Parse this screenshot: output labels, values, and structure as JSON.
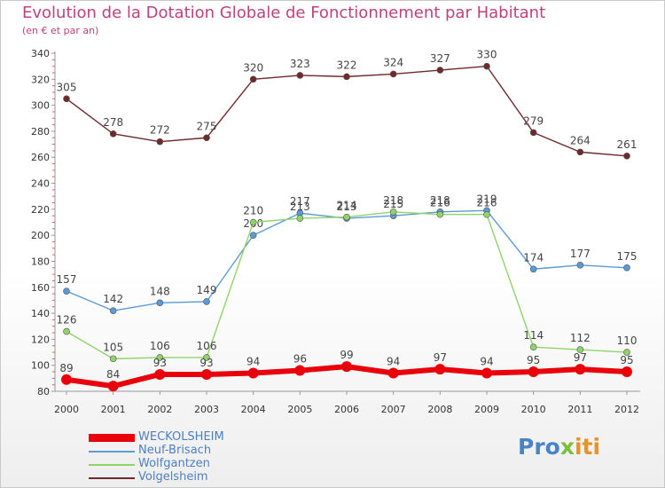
{
  "title": "Evolution de la Dotation Globale de Fonctionnement par Habitant",
  "subtitle": "(en € et par an)",
  "logo": {
    "text": "Proxiti",
    "parts": [
      "Pro",
      "x",
      "iti"
    ]
  },
  "chart_data": {
    "type": "line",
    "title": "Evolution de la Dotation Globale de Fonctionnement par Habitant",
    "subtitle": "(en € et par an)",
    "xlabel": "",
    "ylabel": "",
    "ylim": [
      80,
      340
    ],
    "yticks": [
      80,
      100,
      120,
      140,
      160,
      180,
      200,
      220,
      240,
      260,
      280,
      300,
      320,
      340
    ],
    "grid": false,
    "legend_position": "bottom-left",
    "x": [
      "2000",
      "2001",
      "2002",
      "2003",
      "2004",
      "2005",
      "2006",
      "2007",
      "2008",
      "2009",
      "2010",
      "2011",
      "2012"
    ],
    "series": [
      {
        "name": "Volgelsheim",
        "color": "#6e2a2a",
        "values": [
          305,
          278,
          272,
          275,
          320,
          323,
          322,
          324,
          327,
          330,
          279,
          264,
          261
        ]
      },
      {
        "name": "Neuf-Brisach",
        "color": "#5b9bd5",
        "values": [
          157,
          142,
          148,
          149,
          200,
          217,
          213,
          215,
          218,
          219,
          174,
          177,
          175
        ]
      },
      {
        "name": "Wolfgantzen",
        "color": "#8fd46b",
        "values": [
          126,
          105,
          106,
          106,
          210,
          213,
          214,
          218,
          216,
          216,
          114,
          112,
          110
        ]
      },
      {
        "name": "WECKOLSHEIM",
        "color": "#e8000b",
        "values": [
          89,
          84,
          93,
          93,
          94,
          96,
          99,
          94,
          97,
          94,
          95,
          97,
          95
        ]
      }
    ]
  },
  "legend": [
    {
      "name": "WECKOLSHEIM",
      "color": "#e8000b"
    },
    {
      "name": "Neuf-Brisach",
      "color": "#5b9bd5"
    },
    {
      "name": "Wolfgantzen",
      "color": "#8fd46b"
    },
    {
      "name": "Volgelsheim",
      "color": "#6e2a2a"
    }
  ]
}
